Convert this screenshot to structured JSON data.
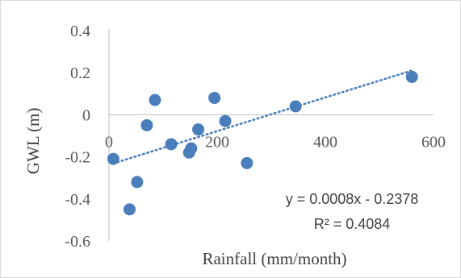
{
  "chart_data": {
    "type": "scatter",
    "title": "",
    "xlabel": "Rainfall (mm/month)",
    "ylabel": "GWL (m)",
    "xlim": [
      0,
      600
    ],
    "ylim": [
      -0.6,
      0.4
    ],
    "xticks": [
      0,
      200,
      400,
      600
    ],
    "yticks": [
      0.4,
      0.2,
      0,
      -0.2,
      -0.4,
      -0.6
    ],
    "grid": false,
    "legend": "none",
    "marker_color": "#4a7ebb",
    "trendline_color": "#4a7ebb",
    "points": [
      {
        "x": 8,
        "y": -0.21
      },
      {
        "x": 38,
        "y": -0.45
      },
      {
        "x": 52,
        "y": -0.32
      },
      {
        "x": 70,
        "y": -0.05
      },
      {
        "x": 85,
        "y": 0.07
      },
      {
        "x": 115,
        "y": -0.14
      },
      {
        "x": 148,
        "y": -0.18
      },
      {
        "x": 152,
        "y": -0.16
      },
      {
        "x": 165,
        "y": -0.07
      },
      {
        "x": 195,
        "y": 0.08
      },
      {
        "x": 215,
        "y": -0.03
      },
      {
        "x": 255,
        "y": -0.23
      },
      {
        "x": 345,
        "y": 0.04
      },
      {
        "x": 560,
        "y": 0.18
      }
    ],
    "trendline": {
      "slope": 0.0008,
      "intercept": -0.2378,
      "x_range": [
        8,
        560
      ],
      "equation_label": "y = 0.0008x - 0.2378",
      "r2_label": "R² = 0.4084"
    }
  }
}
